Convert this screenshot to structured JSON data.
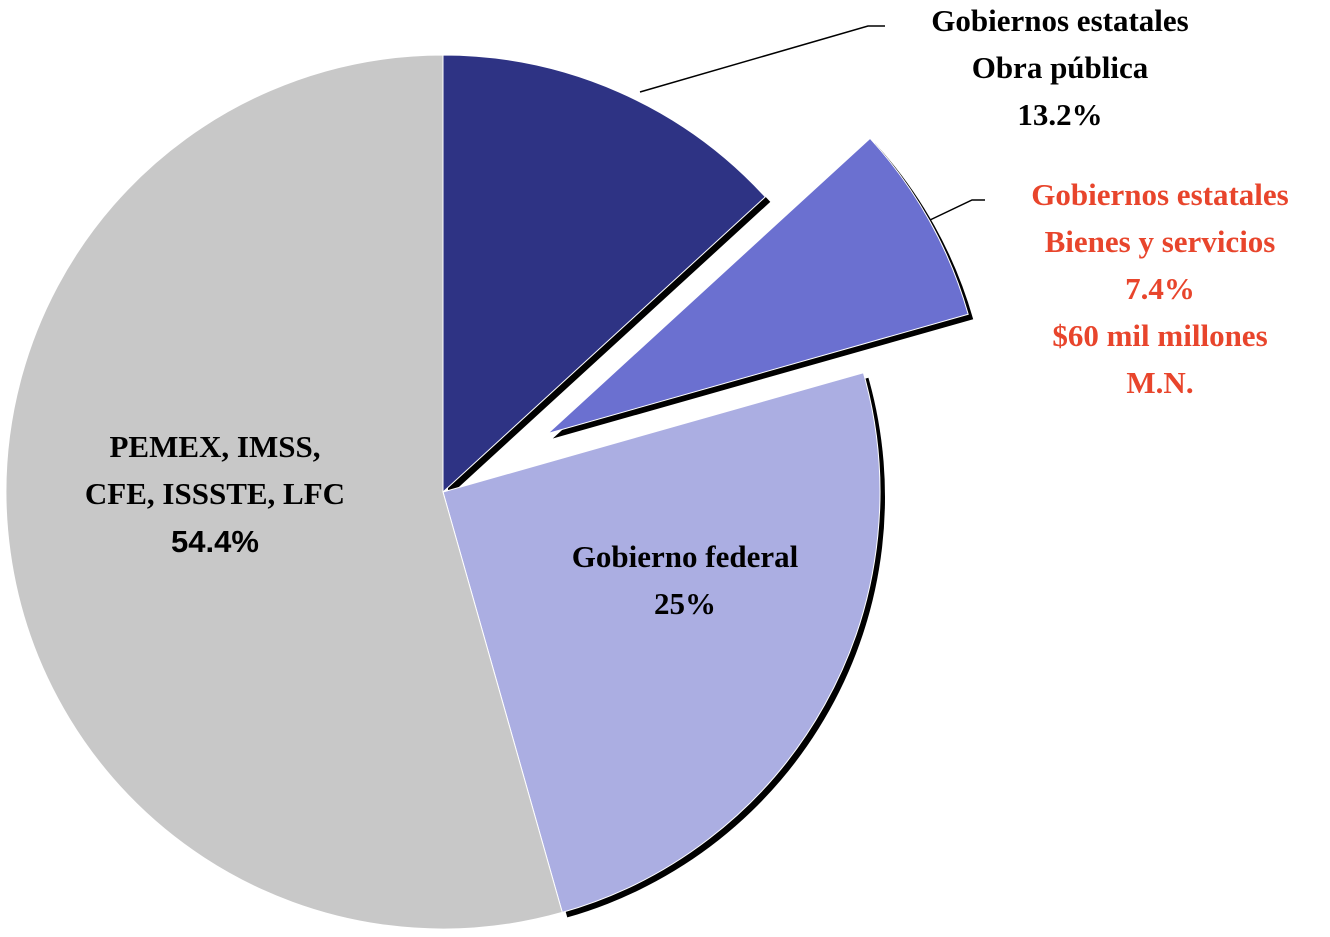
{
  "chart_data": {
    "type": "pie",
    "categories": [
      [
        "Gobiernos estatales",
        "Obra pública"
      ],
      [
        "Gobiernos estatales",
        "Bienes y servicios"
      ],
      [
        "Gobierno federal"
      ],
      [
        "PEMEX, IMSS,",
        "CFE, ISSSTE, LFC"
      ]
    ],
    "values": [
      13.2,
      7.4,
      25,
      54.4
    ],
    "value_labels": [
      "13.2%",
      "7.4%",
      "25%",
      "54.4%"
    ],
    "notes": [
      null,
      [
        "$60 mil millones",
        "M.N."
      ],
      null,
      null
    ],
    "colors": [
      "#2e3384",
      "#6b70d0",
      "#abaee2",
      "#c8c8c8"
    ],
    "label_colors": [
      "#000000",
      "#e8452c",
      "#000000",
      "#000000"
    ],
    "exploded": [
      false,
      true,
      false,
      false
    ],
    "start": "top",
    "direction": "clockwise"
  }
}
